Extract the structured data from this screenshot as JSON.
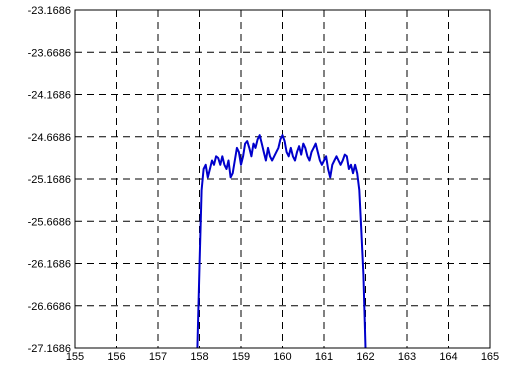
{
  "chart_data": {
    "type": "line",
    "title": "",
    "xlabel": "",
    "ylabel": "",
    "xlim": [
      155,
      165
    ],
    "ylim": [
      -27.1686,
      -23.1686
    ],
    "grid": true,
    "x_ticks": [
      155,
      156,
      157,
      158,
      159,
      160,
      161,
      162,
      163,
      164,
      165
    ],
    "y_ticks": [
      -23.1686,
      -23.6686,
      -24.1686,
      -24.6686,
      -25.1686,
      -25.6686,
      -26.1686,
      -26.6686,
      -27.1686
    ],
    "x_tick_labels": [
      "155",
      "156",
      "157",
      "158",
      "159",
      "160",
      "161",
      "162",
      "163",
      "164",
      "165"
    ],
    "y_tick_labels": [
      "-23.1686",
      "-23.6686",
      "-24.1686",
      "-24.6686",
      "-25.1686",
      "-25.6686",
      "-26.1686",
      "-26.6686",
      "-27.1686"
    ],
    "series": [
      {
        "color": "#0000cc",
        "x": [
          157.95,
          158.0,
          158.05,
          158.1,
          158.15,
          158.2,
          158.25,
          158.3,
          158.35,
          158.4,
          158.45,
          158.5,
          158.55,
          158.6,
          158.65,
          158.7,
          158.75,
          158.8,
          158.85,
          158.9,
          158.95,
          159.0,
          159.05,
          159.1,
          159.15,
          159.2,
          159.25,
          159.3,
          159.35,
          159.4,
          159.45,
          159.5,
          159.55,
          159.6,
          159.65,
          159.7,
          159.75,
          159.8,
          159.85,
          159.9,
          159.95,
          160.0,
          160.05,
          160.1,
          160.15,
          160.2,
          160.25,
          160.3,
          160.35,
          160.4,
          160.45,
          160.5,
          160.55,
          160.6,
          160.65,
          160.7,
          160.75,
          160.8,
          160.85,
          160.9,
          160.95,
          161.0,
          161.05,
          161.1,
          161.15,
          161.2,
          161.25,
          161.3,
          161.35,
          161.4,
          161.45,
          161.5,
          161.55,
          161.6,
          161.65,
          161.7,
          161.75,
          161.8,
          161.85,
          161.9,
          161.95,
          162.0
        ],
        "y": [
          -27.1686,
          -26.2,
          -25.3,
          -25.05,
          -25.0,
          -25.15,
          -25.05,
          -24.95,
          -25.0,
          -24.9,
          -24.92,
          -25.0,
          -24.9,
          -25.0,
          -25.05,
          -24.95,
          -25.15,
          -25.1,
          -24.95,
          -24.8,
          -24.85,
          -25.0,
          -24.9,
          -24.75,
          -24.72,
          -24.8,
          -24.9,
          -24.75,
          -24.8,
          -24.7,
          -24.65,
          -24.75,
          -24.85,
          -24.95,
          -24.8,
          -24.9,
          -24.95,
          -24.9,
          -24.85,
          -24.8,
          -24.7,
          -24.65,
          -24.72,
          -24.85,
          -24.9,
          -24.8,
          -24.9,
          -24.95,
          -24.85,
          -24.78,
          -24.88,
          -24.75,
          -24.8,
          -24.9,
          -24.95,
          -24.85,
          -24.8,
          -24.75,
          -24.85,
          -24.95,
          -25.0,
          -24.95,
          -24.9,
          -25.05,
          -25.15,
          -25.0,
          -24.95,
          -24.9,
          -24.95,
          -25.0,
          -24.95,
          -24.88,
          -24.9,
          -25.05,
          -25.0,
          -25.1,
          -25.0,
          -25.1,
          -25.3,
          -25.8,
          -26.3,
          -27.1686
        ]
      }
    ]
  }
}
